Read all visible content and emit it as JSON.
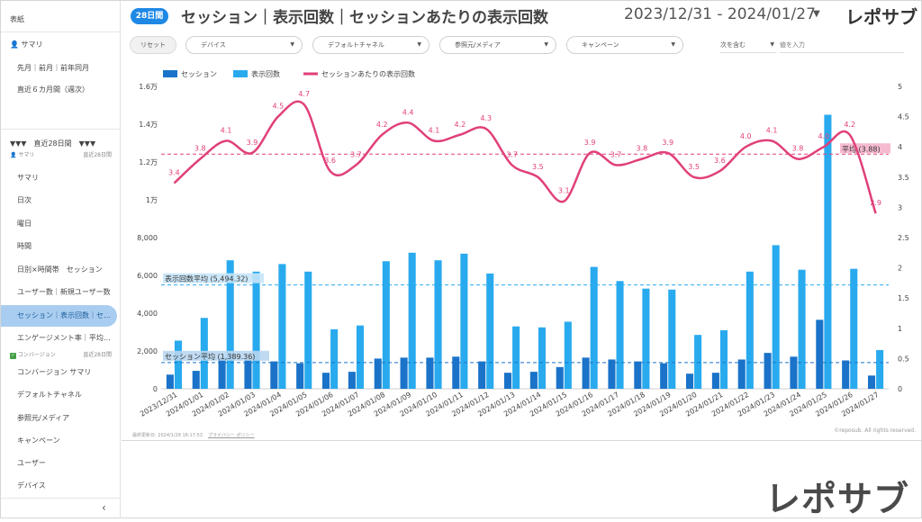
{
  "sidebar": {
    "section_report": "表紙",
    "summary_top": "サマリ",
    "compare_label": "先月｜前月｜前年同月",
    "six_month_label": "直近６カ月間（週次）",
    "section_28d_label": "▼▼▼　直近28日間　▼▼▼",
    "summary_group_label": "サマリ",
    "summary_group_period": "直近28日間",
    "items": [
      {
        "label": "サマリ"
      },
      {
        "label": "日次"
      },
      {
        "label": "曜日"
      },
      {
        "label": "時間"
      },
      {
        "label": "日別×時間帯　セッション"
      },
      {
        "label": "ユーザー数｜新規ユーザー数"
      },
      {
        "label": "セッション｜表示回数｜セ…"
      },
      {
        "label": "エンゲージメント率｜平均…"
      }
    ],
    "conversion_group_label": "コンバージョン",
    "conversion_group_period": "直近28日間",
    "conversion_items": [
      {
        "label": "コンバージョン サマリ"
      },
      {
        "label": "デフォルトチャネル"
      },
      {
        "label": "参照元/メディア"
      },
      {
        "label": "キャンペーン"
      },
      {
        "label": "ユーザー"
      },
      {
        "label": "デバイス"
      }
    ],
    "collapse_icon": "‹"
  },
  "header": {
    "period_badge": "28日間",
    "title": "セッション｜表示回数｜セッションあたりの表示回数",
    "date_range": "2023/12/31 - 2024/01/27",
    "date_caret": "▼",
    "brand": "レポサブ"
  },
  "filters": {
    "reset": "リセット",
    "device": "デバイス",
    "channel": "デフォルトチャネル",
    "source": "参照元/メディア",
    "campaign": "キャンペーン",
    "match": "次を含む",
    "value_placeholder": "値を入力",
    "caret": "▼"
  },
  "footer": {
    "updated": "最終更新日: 2024/1/28 16:17:53",
    "privacy": "プライバシー ポリシー",
    "copyright": "©reposub. All rights reserved."
  },
  "watermark": "レポサブ",
  "colors": {
    "sessions": "#1a73c9",
    "pageviews": "#29aaee",
    "ratio": "#e0407a",
    "avg_sessions": "#1a73c9",
    "avg_pageviews": "#29aaee",
    "avg_ratio": "#e0407a"
  },
  "chart_data": {
    "type": "bar",
    "legend": [
      "セッション",
      "表示回数",
      "セッションあたりの表示回数"
    ],
    "categories": [
      "2023/12/31",
      "2024/01/01",
      "2024/01/02",
      "2024/01/03",
      "2024/01/04",
      "2024/01/05",
      "2024/01/06",
      "2024/01/07",
      "2024/01/08",
      "2024/01/09",
      "2024/01/10",
      "2024/01/11",
      "2024/01/12",
      "2024/01/13",
      "2024/01/14",
      "2024/01/15",
      "2024/01/16",
      "2024/01/17",
      "2024/01/18",
      "2024/01/19",
      "2024/01/20",
      "2024/01/21",
      "2024/01/22",
      "2024/01/23",
      "2024/01/24",
      "2024/01/25",
      "2024/01/26",
      "2024/01/27"
    ],
    "series": [
      {
        "name": "セッション",
        "axis": "left",
        "values": [
          750,
          950,
          1650,
          1550,
          1450,
          1350,
          850,
          900,
          1600,
          1650,
          1650,
          1700,
          1450,
          850,
          900,
          1150,
          1650,
          1550,
          1450,
          1350,
          800,
          850,
          1550,
          1900,
          1700,
          3650,
          1500,
          700
        ]
      },
      {
        "name": "表示回数",
        "axis": "left",
        "values": [
          2550,
          3750,
          6800,
          6200,
          6600,
          6200,
          3150,
          3350,
          6750,
          7200,
          6800,
          7150,
          6100,
          3300,
          3250,
          3550,
          6450,
          5700,
          5300,
          5250,
          2850,
          3100,
          6200,
          7600,
          6300,
          14500,
          6350,
          2050
        ]
      },
      {
        "name": "セッションあたりの表示回数",
        "axis": "right",
        "type": "line",
        "values": [
          3.4,
          3.8,
          4.1,
          3.9,
          4.5,
          4.7,
          3.6,
          3.7,
          4.2,
          4.4,
          4.1,
          4.2,
          4.3,
          3.7,
          3.5,
          3.1,
          3.9,
          3.7,
          3.8,
          3.9,
          3.5,
          3.6,
          4.0,
          4.1,
          3.8,
          4.0,
          4.2,
          2.9
        ]
      }
    ],
    "ratio_labels": [
      "3.4",
      "3.8",
      "4.1",
      "3.9",
      "4.5",
      "4.7",
      "3.6",
      "3.7",
      "4.2",
      "4.4",
      "4.1",
      "4.2",
      "4.3",
      "3.7",
      "3.5",
      "3.1",
      "3.9",
      "3.7",
      "3.8",
      "3.9",
      "3.5",
      "3.6",
      "4.0",
      "4.1",
      "3.8",
      "4.0",
      "4.2",
      "2.9"
    ],
    "averages": {
      "sessions": 1389.36,
      "sessions_label": "セッション平均 (1,389.36)",
      "pageviews": 5494.32,
      "pageviews_label": "表示回数平均 (5,494.32)",
      "ratio": 3.88,
      "ratio_label": "平均 (3.88)"
    },
    "left_axis": {
      "min": 0,
      "max": 16000,
      "ticks": [
        {
          "v": 0,
          "label": "0"
        },
        {
          "v": 2000,
          "label": "2,000"
        },
        {
          "v": 4000,
          "label": "4,000"
        },
        {
          "v": 6000,
          "label": "6,000"
        },
        {
          "v": 8000,
          "label": "8,000"
        },
        {
          "v": 10000,
          "label": "1万"
        },
        {
          "v": 12000,
          "label": "1.2万"
        },
        {
          "v": 14000,
          "label": "1.4万"
        },
        {
          "v": 16000,
          "label": "1.6万"
        }
      ]
    },
    "right_axis": {
      "min": 0,
      "max": 5,
      "ticks": [
        {
          "v": 0,
          "label": "0"
        },
        {
          "v": 0.5,
          "label": "0.5"
        },
        {
          "v": 1,
          "label": "1"
        },
        {
          "v": 1.5,
          "label": "1.5"
        },
        {
          "v": 2,
          "label": "2"
        },
        {
          "v": 2.5,
          "label": "2.5"
        },
        {
          "v": 3,
          "label": "3"
        },
        {
          "v": 3.5,
          "label": "3.5"
        },
        {
          "v": 4,
          "label": "4"
        },
        {
          "v": 4.5,
          "label": "4.5"
        },
        {
          "v": 5,
          "label": "5"
        }
      ]
    }
  }
}
